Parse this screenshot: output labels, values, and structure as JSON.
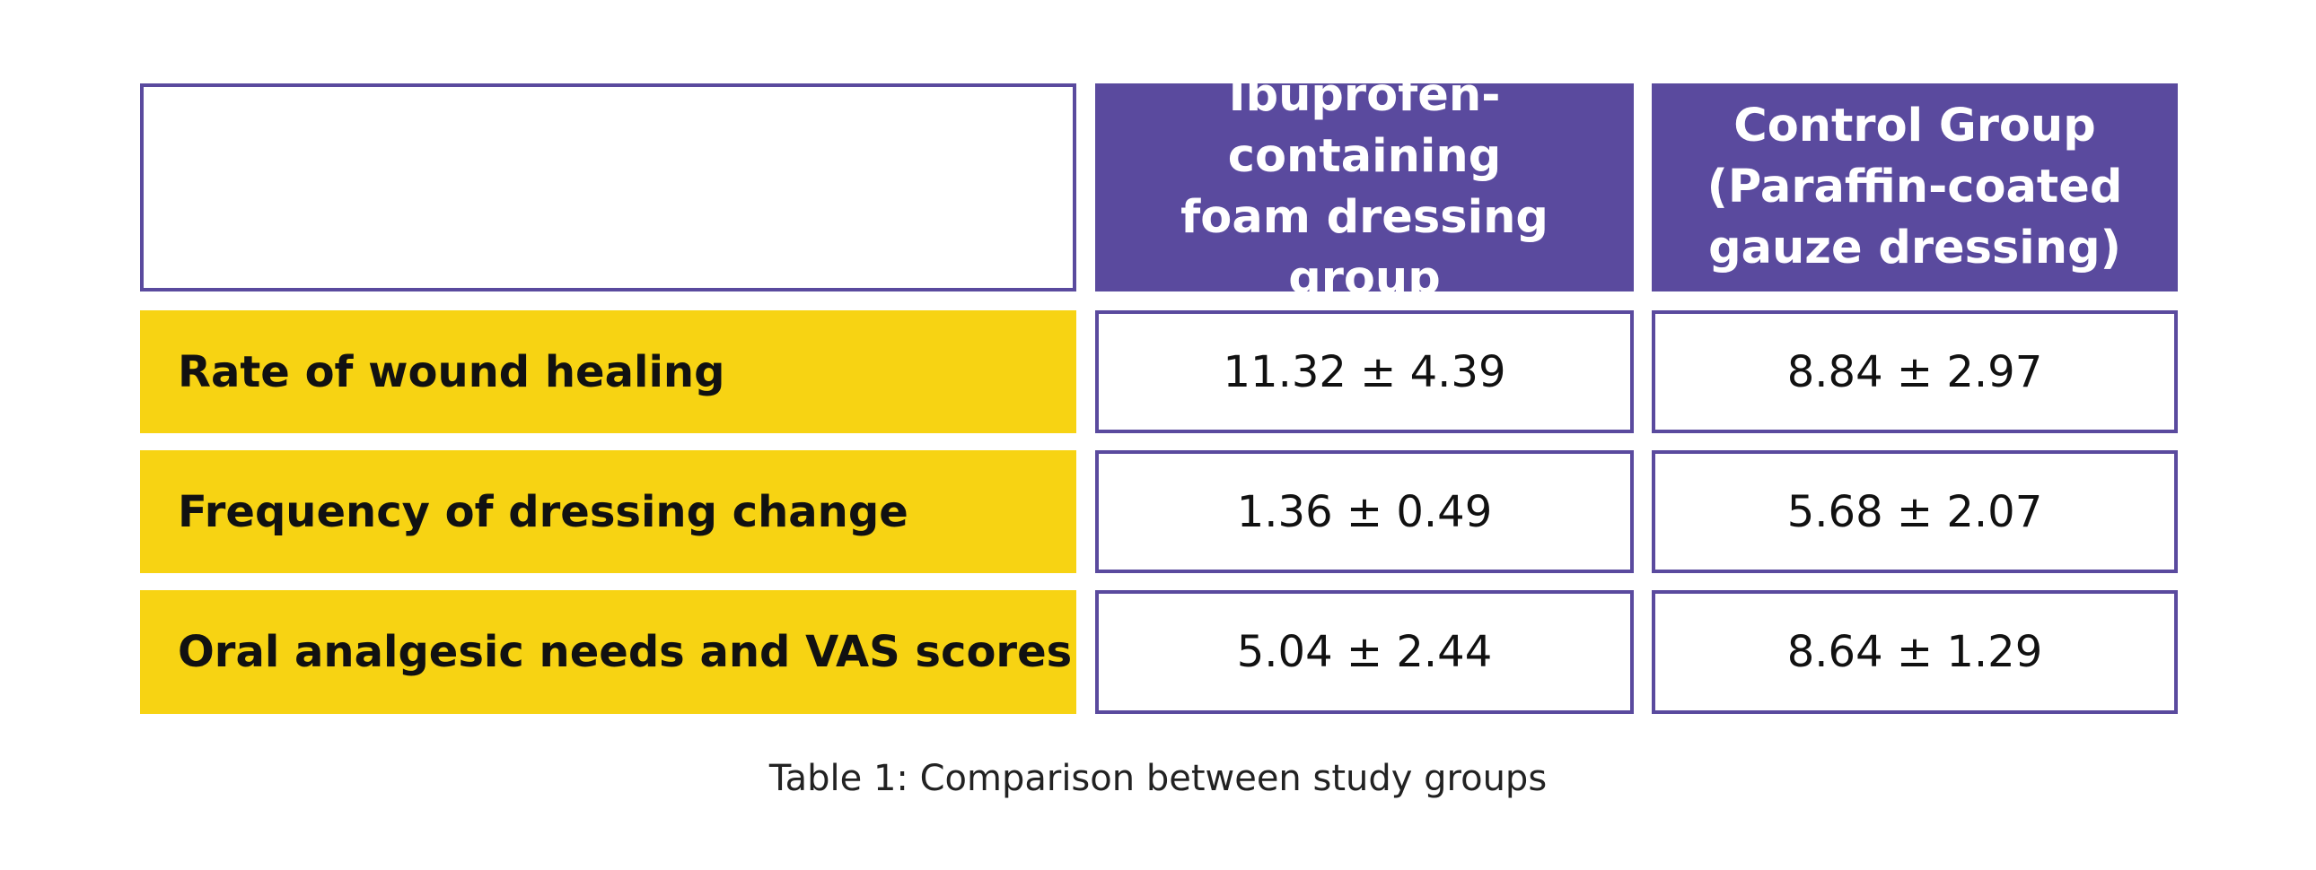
{
  "table": {
    "columns": [
      "Ibuprofen-containing\nfoam dressing\ngroup",
      "Control Group\n(Paraffin-coated\ngauze dressing)"
    ],
    "rows": [
      {
        "label": "Rate of wound healing",
        "values": [
          "11.32 ± 4.39",
          "8.84 ± 2.97"
        ]
      },
      {
        "label": "Frequency of dressing change",
        "values": [
          "1.36 ± 0.49",
          "5.68 ± 2.07"
        ]
      },
      {
        "label": "Oral analgesic needs and VAS scores",
        "values": [
          "5.04 ± 2.44",
          "8.64 ± 1.29"
        ]
      }
    ],
    "caption": "Table 1: Comparison between study groups"
  },
  "colors": {
    "header_purple": "#5a4a9e",
    "label_yellow": "#f7d313",
    "border_purple": "#5a4a9e"
  }
}
